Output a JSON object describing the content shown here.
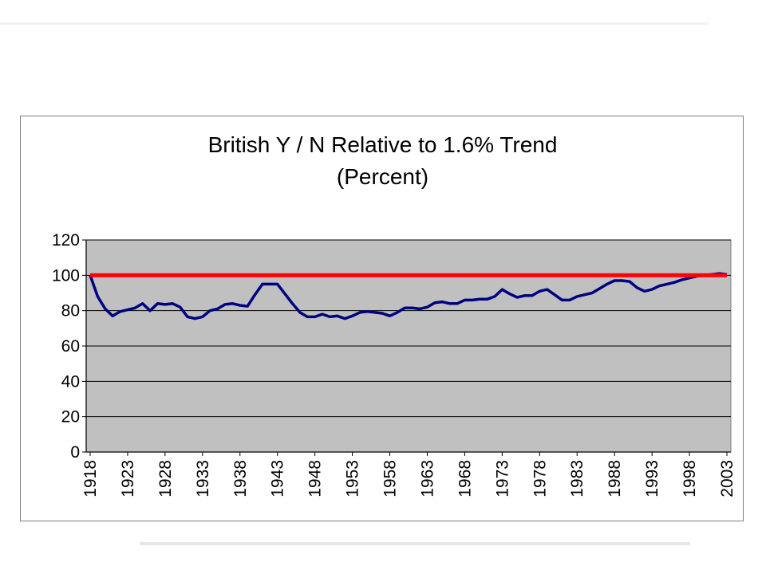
{
  "chart_data": {
    "type": "line",
    "title_lines": [
      "British Y / N Relative to 1.6% Trend",
      "(Percent)"
    ],
    "xlabel": "",
    "ylabel": "",
    "ylim": [
      0,
      120
    ],
    "y_ticks": [
      0,
      20,
      40,
      60,
      80,
      100,
      120
    ],
    "x_range": [
      1918,
      2003
    ],
    "x_ticks": [
      1918,
      1923,
      1928,
      1933,
      1938,
      1943,
      1948,
      1953,
      1958,
      1963,
      1968,
      1973,
      1978,
      1983,
      1988,
      1993,
      1998,
      2003
    ],
    "grid": "horizontal",
    "plot_background": "#c0c0c0",
    "series": [
      {
        "color": "#000080",
        "x": [
          1918,
          1919,
          1920,
          1921,
          1922,
          1923,
          1924,
          1925,
          1926,
          1927,
          1928,
          1929,
          1930,
          1931,
          1932,
          1933,
          1934,
          1935,
          1936,
          1937,
          1938,
          1939,
          1940,
          1941,
          1942,
          1943,
          1944,
          1945,
          1946,
          1947,
          1948,
          1949,
          1950,
          1951,
          1952,
          1953,
          1954,
          1955,
          1956,
          1957,
          1958,
          1959,
          1960,
          1961,
          1962,
          1963,
          1964,
          1965,
          1966,
          1967,
          1968,
          1969,
          1970,
          1971,
          1972,
          1973,
          1974,
          1975,
          1976,
          1977,
          1978,
          1979,
          1980,
          1981,
          1982,
          1983,
          1984,
          1985,
          1986,
          1987,
          1988,
          1989,
          1990,
          1991,
          1992,
          1993,
          1994,
          1995,
          1996,
          1997,
          1998,
          1999,
          2000,
          2001,
          2002,
          2003
        ],
        "values": [
          100,
          88,
          81,
          77,
          79.5,
          80.5,
          81.5,
          84,
          80,
          84,
          83.5,
          84,
          82,
          76.5,
          75.5,
          76.5,
          80,
          81,
          83.5,
          84,
          83,
          82.5,
          89,
          95,
          95,
          95,
          89.5,
          84,
          79,
          76.5,
          76.5,
          78,
          76.5,
          77,
          75.5,
          77,
          79,
          79.5,
          79,
          78.5,
          77,
          79,
          81.5,
          81.5,
          81,
          82,
          84.5,
          85,
          84,
          84,
          86,
          86,
          86.5,
          86.5,
          88,
          92,
          89.5,
          87.5,
          88.5,
          88.5,
          91,
          92,
          89,
          86,
          86,
          88,
          89,
          90,
          92.5,
          95,
          97,
          97,
          96.5,
          93,
          91,
          92,
          94,
          95,
          96,
          97.5,
          98.5,
          99.5,
          100,
          100.5,
          101,
          100.5
        ]
      },
      {
        "color": "#ff0000",
        "x": [
          1918,
          2003
        ],
        "values": [
          100,
          100
        ]
      }
    ]
  }
}
